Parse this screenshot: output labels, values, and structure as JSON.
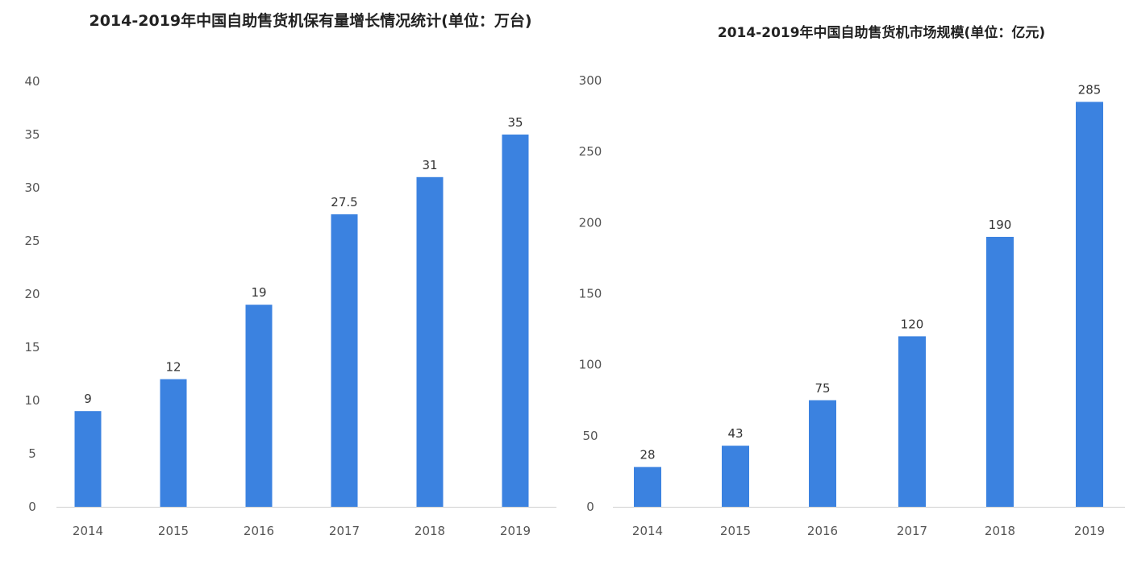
{
  "chart_data": [
    {
      "type": "bar",
      "title": "2014-2019年中国自助售货机保有量增长情况统计(单位：万台)",
      "categories": [
        "2014",
        "2015",
        "2016",
        "2017",
        "2018",
        "2019"
      ],
      "values": [
        9,
        12,
        19,
        27.5,
        31,
        35
      ],
      "data_labels": [
        "9",
        "12",
        "19",
        "27.5",
        "31",
        "35"
      ],
      "ylim": [
        0,
        40
      ],
      "yticks": [
        "0",
        "5",
        "10",
        "15",
        "20",
        "25",
        "30",
        "35",
        "40"
      ],
      "grid": false,
      "bar_color": "#3b82e0"
    },
    {
      "type": "bar",
      "title": "2014-2019年中国自助售货机市场规模(单位：亿元)",
      "categories": [
        "2014",
        "2015",
        "2016",
        "2017",
        "2018",
        "2019"
      ],
      "values": [
        28,
        43,
        75,
        120,
        190,
        285
      ],
      "data_labels": [
        "28",
        "43",
        "75",
        "120",
        "190",
        "285"
      ],
      "ylim": [
        0,
        300
      ],
      "yticks": [
        "0",
        "50",
        "100",
        "150",
        "200",
        "250",
        "300"
      ],
      "grid": false,
      "bar_color": "#3b82e0"
    }
  ]
}
